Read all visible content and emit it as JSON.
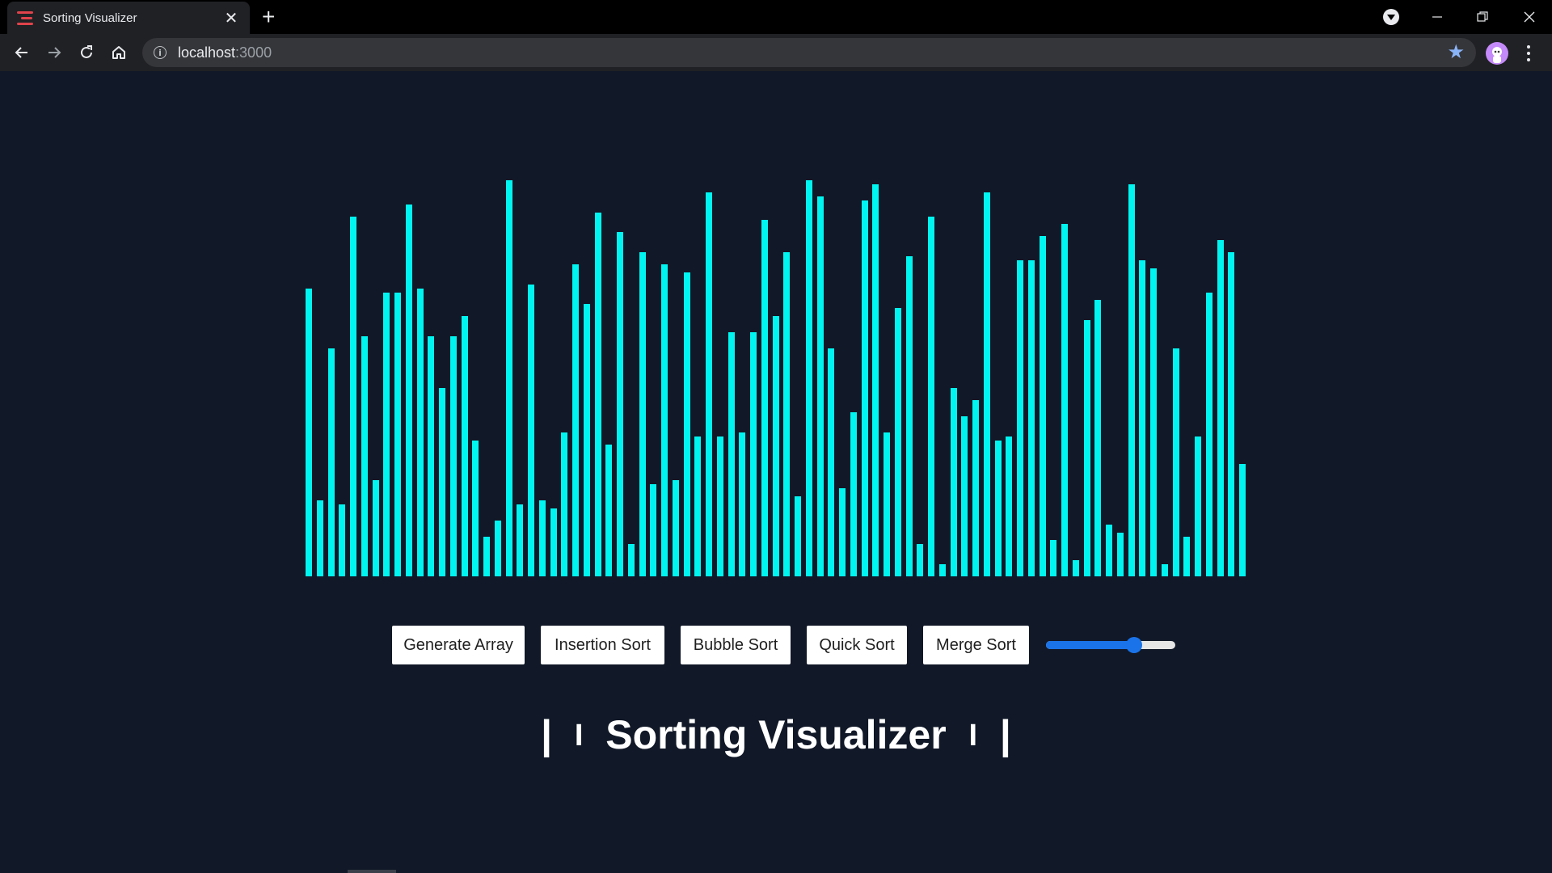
{
  "browser": {
    "tab_title": "Sorting Visualizer",
    "url_host": "localhost",
    "url_port": ":3000"
  },
  "colors": {
    "page_background": "#111827",
    "bar_color": "#00f5f0",
    "slider_accent": "#1a73e8"
  },
  "chart_data": {
    "type": "bar",
    "values": [
      72,
      19,
      57,
      18,
      90,
      60,
      24,
      71,
      71,
      93,
      72,
      60,
      47,
      60,
      65,
      34,
      10,
      14,
      99,
      18,
      73,
      19,
      17,
      36,
      78,
      68,
      91,
      33,
      86,
      8,
      81,
      23,
      78,
      24,
      76,
      35,
      96,
      35,
      61,
      36,
      61,
      89,
      65,
      81,
      20,
      99,
      95,
      57,
      22,
      41,
      94,
      98,
      36,
      67,
      80,
      8,
      90,
      3,
      47,
      40,
      44,
      96,
      34,
      35,
      79,
      79,
      85,
      9,
      88,
      4,
      64,
      69,
      13,
      11,
      98,
      79,
      77,
      3,
      57,
      10,
      35,
      71,
      84,
      81,
      28
    ],
    "ylim": [
      0,
      100
    ]
  },
  "controls": {
    "generate_label": "Generate Array",
    "insertion_label": "Insertion Sort",
    "bubble_label": "Bubble Sort",
    "quick_label": "Quick Sort",
    "merge_label": "Merge Sort",
    "slider_value_fraction": 0.68
  },
  "heading": {
    "pipe_outer_left": "|",
    "pipe_inner_left": "I",
    "title": "Sorting Visualizer",
    "pipe_inner_right": "I",
    "pipe_outer_right": "|"
  },
  "icons": {
    "favicon": "hamburger-icon",
    "close": "close-icon",
    "new_tab": "plus-icon",
    "back": "back-arrow-icon",
    "forward": "forward-arrow-icon",
    "reload": "reload-icon",
    "home": "home-icon",
    "info": "info-icon",
    "bookmark": "star-icon",
    "menu": "kebab-menu-icon"
  }
}
